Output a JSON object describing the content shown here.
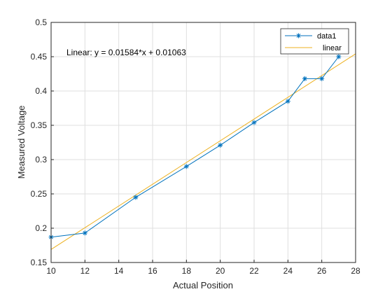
{
  "chart_data": {
    "type": "line",
    "title": "",
    "xlabel": "Actual Position",
    "ylabel": "Measured Voltage",
    "xlim": [
      10,
      28
    ],
    "ylim": [
      0.15,
      0.5
    ],
    "xticks": [
      10,
      12,
      14,
      16,
      18,
      20,
      22,
      24,
      26,
      28
    ],
    "yticks": [
      0.15,
      0.2,
      0.25,
      0.3,
      0.35,
      0.4,
      0.45,
      0.5
    ],
    "grid": true,
    "legend_position": "top-right",
    "annotation": "Linear:  y = 0.01584*x + 0.01063",
    "series": [
      {
        "name": "data1",
        "marker": "asterisk",
        "color": "#0072BD",
        "x": [
          10,
          12,
          15,
          18,
          20,
          22,
          24,
          25,
          26,
          27
        ],
        "y": [
          0.187,
          0.193,
          0.245,
          0.29,
          0.321,
          0.354,
          0.385,
          0.418,
          0.418,
          0.45
        ]
      },
      {
        "name": "linear",
        "color": "#EDB120",
        "slope": 0.01584,
        "intercept": 0.01063
      }
    ]
  }
}
